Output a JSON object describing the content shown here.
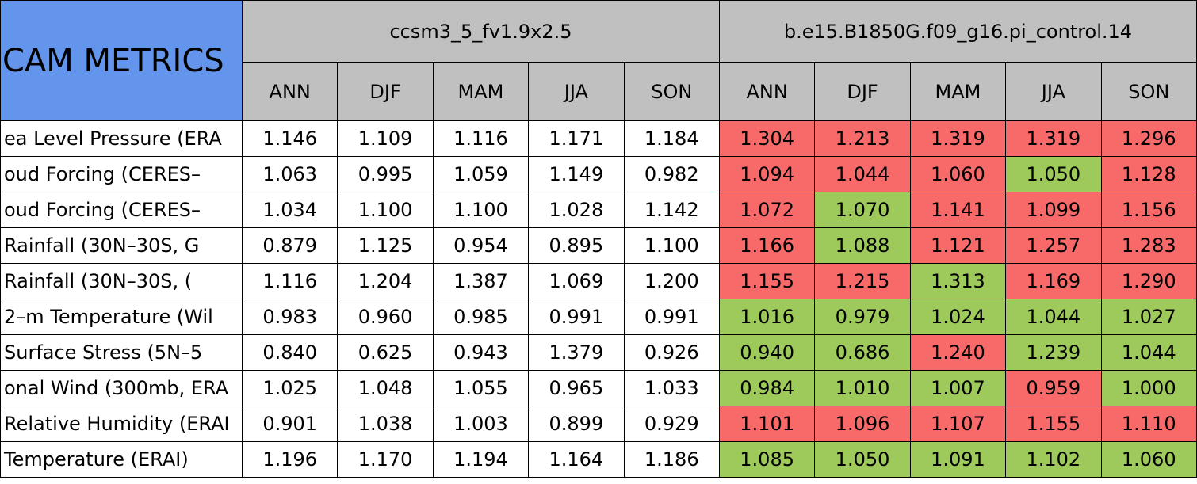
{
  "header": {
    "title": "CAM METRICS",
    "groups": [
      "ccsm3_5_fv1.9x2.5",
      "b.e15.B1850G.f09_g16.pi_control.14"
    ],
    "seasons": [
      "ANN",
      "DJF",
      "MAM",
      "JJA",
      "SON"
    ]
  },
  "table": {
    "rows": [
      {
        "label": "ea Level Pressure (ERA",
        "values": [
          "1.146",
          "1.109",
          "1.116",
          "1.171",
          "1.184",
          "1.304",
          "1.213",
          "1.319",
          "1.319",
          "1.296"
        ],
        "colors": [
          "#f86a6a",
          "#f86a6a",
          "#f86a6a",
          "#f86a6a",
          "#f86a6a"
        ]
      },
      {
        "label": "oud Forcing (CERES–",
        "values": [
          "1.063",
          "0.995",
          "1.059",
          "1.149",
          "0.982",
          "1.094",
          "1.044",
          "1.060",
          "1.050",
          "1.128"
        ],
        "colors": [
          "#f86a6a",
          "#f86a6a",
          "#f86a6a",
          "#9dca5a",
          "#f86a6a"
        ]
      },
      {
        "label": "oud Forcing (CERES–",
        "values": [
          "1.034",
          "1.100",
          "1.100",
          "1.028",
          "1.142",
          "1.072",
          "1.070",
          "1.141",
          "1.099",
          "1.156"
        ],
        "colors": [
          "#f86a6a",
          "#9dca5a",
          "#f86a6a",
          "#f86a6a",
          "#f86a6a"
        ]
      },
      {
        "label": "Rainfall (30N–30S, G",
        "values": [
          "0.879",
          "1.125",
          "0.954",
          "0.895",
          "1.100",
          "1.166",
          "1.088",
          "1.121",
          "1.257",
          "1.283"
        ],
        "colors": [
          "#f86a6a",
          "#9dca5a",
          "#f86a6a",
          "#f86a6a",
          "#f86a6a"
        ]
      },
      {
        "label": "Rainfall (30N–30S, (",
        "values": [
          "1.116",
          "1.204",
          "1.387",
          "1.069",
          "1.200",
          "1.155",
          "1.215",
          "1.313",
          "1.169",
          "1.290"
        ],
        "colors": [
          "#f86a6a",
          "#f86a6a",
          "#9dca5a",
          "#f86a6a",
          "#f86a6a"
        ]
      },
      {
        "label": "2–m Temperature (Wil",
        "values": [
          "0.983",
          "0.960",
          "0.985",
          "0.991",
          "0.991",
          "1.016",
          "0.979",
          "1.024",
          "1.044",
          "1.027"
        ],
        "colors": [
          "#9dca5a",
          "#9dca5a",
          "#9dca5a",
          "#9dca5a",
          "#9dca5a"
        ]
      },
      {
        "label": "Surface Stress (5N–5",
        "values": [
          "0.840",
          "0.625",
          "0.943",
          "1.379",
          "0.926",
          "0.940",
          "0.686",
          "1.240",
          "1.239",
          "1.044"
        ],
        "colors": [
          "#9dca5a",
          "#9dca5a",
          "#f86a6a",
          "#9dca5a",
          "#9dca5a"
        ]
      },
      {
        "label": "onal Wind (300mb, ERA",
        "values": [
          "1.025",
          "1.048",
          "1.055",
          "0.965",
          "1.033",
          "0.984",
          "1.010",
          "1.007",
          "0.959",
          "1.000"
        ],
        "colors": [
          "#9dca5a",
          "#9dca5a",
          "#9dca5a",
          "#f86a6a",
          "#9dca5a"
        ]
      },
      {
        "label": "Relative Humidity (ERAI",
        "values": [
          "0.901",
          "1.038",
          "1.003",
          "0.899",
          "0.929",
          "1.101",
          "1.096",
          "1.107",
          "1.155",
          "1.110"
        ],
        "colors": [
          "#f86a6a",
          "#f86a6a",
          "#f86a6a",
          "#f86a6a",
          "#f86a6a"
        ]
      },
      {
        "label": "Temperature (ERAI)",
        "values": [
          "1.196",
          "1.170",
          "1.194",
          "1.164",
          "1.186",
          "1.085",
          "1.050",
          "1.091",
          "1.102",
          "1.060"
        ],
        "colors": [
          "#9dca5a",
          "#9dca5a",
          "#9dca5a",
          "#9dca5a",
          "#9dca5a"
        ]
      }
    ]
  }
}
